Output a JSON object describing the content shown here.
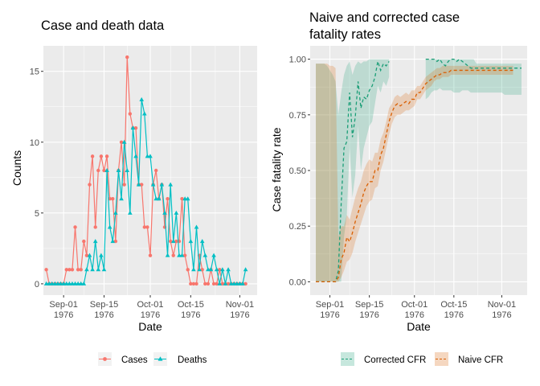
{
  "charts": [
    {
      "title": "Case and death data",
      "xlabel": "Date",
      "ylabel": "Counts"
    },
    {
      "title_lines": [
        "Naive and corrected case",
        "fatality rates"
      ],
      "xlabel": "Date",
      "ylabel": "Case fatality rate"
    }
  ],
  "legends": [
    {
      "items": [
        "Cases",
        "Deaths"
      ]
    },
    {
      "items": [
        "Corrected CFR",
        "Naive CFR"
      ]
    }
  ],
  "colors": {
    "panel": "#ebebeb",
    "grid": "#ffffff",
    "cases": "#f8766d",
    "deaths": "#00bfc4",
    "corrected_line": "#1b9e77",
    "corrected_ribbon": "#1b9e77",
    "naive_line": "#d95f02",
    "naive_ribbon": "#d95f02"
  },
  "chart_data": [
    {
      "type": "line",
      "title": "Case and death data",
      "xlabel": "Date",
      "ylabel": "Counts",
      "x_ticks": [
        "Sep-01\n1976",
        "Sep-15\n1976",
        "Oct-01\n1976",
        "Oct-15\n1976",
        "Nov-01\n1976"
      ],
      "y_ticks": [
        "0",
        "5",
        "10",
        "15"
      ],
      "ylim": [
        0,
        16.5
      ],
      "x_range_days": [
        "1976-08-25",
        "1976-11-07"
      ],
      "legend_position": "bottom",
      "series": [
        {
          "name": "Cases",
          "marker": "circle",
          "start_date": "1976-08-26",
          "values": [
            1,
            0,
            0,
            0,
            0,
            0,
            0,
            1,
            1,
            1,
            4,
            1,
            1,
            3,
            2,
            7,
            9,
            4,
            8,
            9,
            8,
            9,
            6,
            6,
            3,
            8,
            10,
            7,
            16,
            12,
            11,
            11,
            7,
            7,
            4,
            4,
            2,
            7,
            8,
            6,
            7,
            4,
            6,
            3,
            2,
            3,
            3,
            6,
            2,
            1,
            0,
            0,
            0,
            2,
            1,
            0,
            0,
            1,
            0,
            0,
            1,
            0,
            0,
            0,
            0,
            0,
            0,
            0,
            0,
            0
          ]
        },
        {
          "name": "Deaths",
          "marker": "triangle",
          "start_date": "1976-08-26",
          "values": [
            0,
            0,
            0,
            0,
            0,
            0,
            0,
            0,
            0,
            0,
            0,
            0,
            0,
            0,
            1,
            2,
            1,
            3,
            1,
            2,
            1,
            8,
            4,
            3,
            5,
            8,
            6,
            10,
            8,
            5,
            11,
            9,
            7,
            13,
            12,
            9,
            9,
            7,
            6,
            6,
            7,
            5,
            2,
            7,
            3,
            5,
            2,
            2,
            6,
            6,
            3,
            1,
            4,
            1,
            3,
            2,
            1,
            1,
            2,
            1,
            0,
            1,
            0,
            1,
            0,
            0,
            0,
            0,
            0,
            1
          ]
        }
      ]
    },
    {
      "type": "line",
      "title": "Naive and corrected case fatality rates",
      "xlabel": "Date",
      "ylabel": "Case fatality rate",
      "x_ticks": [
        "Sep-01\n1976",
        "Sep-15\n1976",
        "Oct-01\n1976",
        "Oct-15\n1976",
        "Nov-01\n1976"
      ],
      "y_ticks": [
        "0.00",
        "0.25",
        "0.50",
        "0.75",
        "1.00"
      ],
      "ylim": [
        -0.06,
        1.06
      ],
      "x_range_days": [
        "1976-08-25",
        "1976-11-10"
      ],
      "legend_position": "bottom",
      "series": [
        {
          "name": "Corrected CFR",
          "line": "dashed",
          "ribbon": true,
          "segments": [
            {
              "start_date": "1976-08-27",
              "values": [
                0,
                0,
                0,
                0,
                0,
                0,
                0,
                0,
                0.05,
                0.35,
                0.6,
                0.63,
                0.85,
                0.65,
                0.74,
                0.9,
                0.78,
                0.83,
                0.82,
                0.86,
                0.88,
                0.92,
                0.99,
                0.95,
                0.98,
                0.97,
                0.99
              ],
              "lower": [
                0,
                0,
                0,
                0,
                0,
                0,
                0,
                0,
                0,
                0,
                0.2,
                0.3,
                0.6,
                0.38,
                0.48,
                0.7,
                0.5,
                0.6,
                0.65,
                0.7,
                0.72,
                0.8,
                0.88,
                0.85,
                0.9,
                0.88,
                0.92
              ],
              "upper": [
                0.98,
                0.98,
                0.98,
                0.98,
                0.97,
                0.95,
                0.93,
                0.9,
                0.75,
                0.85,
                0.93,
                0.97,
                0.99,
                0.93,
                0.97,
                0.99,
                0.98,
                0.99,
                0.99,
                1,
                1,
                1,
                1,
                1,
                1,
                1,
                1
              ]
            },
            {
              "start_date": "1976-10-05",
              "values": [
                1,
                1,
                1,
                1,
                0.99,
                1,
                0.98,
                0.97,
                0.99,
                1,
                1,
                0.99,
                1,
                0.99,
                0.98,
                0.97,
                0.96,
                0.96,
                0.96,
                0.96,
                0.96,
                0.96,
                0.96,
                0.96,
                0.96,
                0.96,
                0.96,
                0.96,
                0.96,
                0.96,
                0.96,
                0.96,
                0.96,
                0.96,
                0.96
              ],
              "lower": [
                0.82,
                0.83,
                0.85,
                0.86,
                0.86,
                0.87,
                0.86,
                0.86,
                0.86,
                0.86,
                0.85,
                0.85,
                0.85,
                0.86,
                0.86,
                0.86,
                0.85,
                0.85,
                0.85,
                0.85,
                0.85,
                0.85,
                0.85,
                0.85,
                0.85,
                0.85,
                0.85,
                0.85,
                0.84,
                0.84,
                0.84,
                0.84,
                0.84,
                0.84,
                0.84
              ],
              "upper": [
                1,
                1,
                1,
                1,
                1,
                1,
                1,
                1,
                1,
                1,
                1,
                1,
                1,
                1,
                1,
                1,
                1,
                1,
                0.98,
                0.98,
                0.98,
                0.98,
                0.98,
                0.98,
                0.98,
                0.98,
                0.98,
                0.98,
                0.98,
                0.98,
                0.98,
                0.98,
                0.98,
                0.98,
                0.98
              ]
            }
          ]
        },
        {
          "name": "Naive CFR",
          "line": "dashed",
          "ribbon": true,
          "start_date": "1976-08-27",
          "values": [
            0,
            0,
            0,
            0,
            0,
            0,
            0,
            0,
            0.02,
            0.1,
            0.13,
            0.2,
            0.18,
            0.22,
            0.27,
            0.31,
            0.35,
            0.4,
            0.43,
            0.45,
            0.45,
            0.5,
            0.5,
            0.57,
            0.6,
            0.66,
            0.72,
            0.76,
            0.79,
            0.8,
            0.79,
            0.8,
            0.81,
            0.8,
            0.82,
            0.82,
            0.85,
            0.85,
            0.87,
            0.89,
            0.9,
            0.91,
            0.92,
            0.93,
            0.93,
            0.94,
            0.94,
            0.94,
            0.95,
            0.95,
            0.95,
            0.95,
            0.95,
            0.95,
            0.95,
            0.95,
            0.95,
            0.95,
            0.95,
            0.95,
            0.95,
            0.95,
            0.95,
            0.95,
            0.95,
            0.95,
            0.95,
            0.95,
            0.95,
            0.95,
            0.95
          ],
          "lower": [
            0,
            0,
            0,
            0,
            0,
            0,
            0,
            0,
            0,
            0.02,
            0.05,
            0.09,
            0.1,
            0.13,
            0.18,
            0.22,
            0.26,
            0.3,
            0.34,
            0.36,
            0.37,
            0.42,
            0.43,
            0.5,
            0.54,
            0.6,
            0.66,
            0.71,
            0.74,
            0.75,
            0.75,
            0.76,
            0.77,
            0.77,
            0.78,
            0.79,
            0.82,
            0.82,
            0.84,
            0.86,
            0.87,
            0.88,
            0.9,
            0.91,
            0.91,
            0.92,
            0.92,
            0.92,
            0.93,
            0.93,
            0.93,
            0.93,
            0.93,
            0.93,
            0.93,
            0.93,
            0.93,
            0.93,
            0.93,
            0.93,
            0.93,
            0.93,
            0.93,
            0.93,
            0.93,
            0.93,
            0.93,
            0.93,
            0.93,
            0.93,
            0.93
          ],
          "upper": [
            0.98,
            0.98,
            0.98,
            0.98,
            0.98,
            0.97,
            0.97,
            0.96,
            0.2,
            0.25,
            0.25,
            0.3,
            0.28,
            0.33,
            0.38,
            0.42,
            0.45,
            0.5,
            0.53,
            0.55,
            0.54,
            0.58,
            0.58,
            0.64,
            0.67,
            0.72,
            0.78,
            0.8,
            0.83,
            0.84,
            0.83,
            0.84,
            0.85,
            0.84,
            0.86,
            0.86,
            0.88,
            0.88,
            0.9,
            0.92,
            0.93,
            0.94,
            0.95,
            0.96,
            0.96,
            0.97,
            0.97,
            0.97,
            0.97,
            0.97,
            0.97,
            0.97,
            0.97,
            0.97,
            0.97,
            0.97,
            0.97,
            0.97,
            0.97,
            0.97,
            0.97,
            0.97,
            0.97,
            0.97,
            0.97,
            0.97,
            0.97,
            0.97,
            0.97,
            0.97,
            0.97
          ]
        }
      ]
    }
  ]
}
